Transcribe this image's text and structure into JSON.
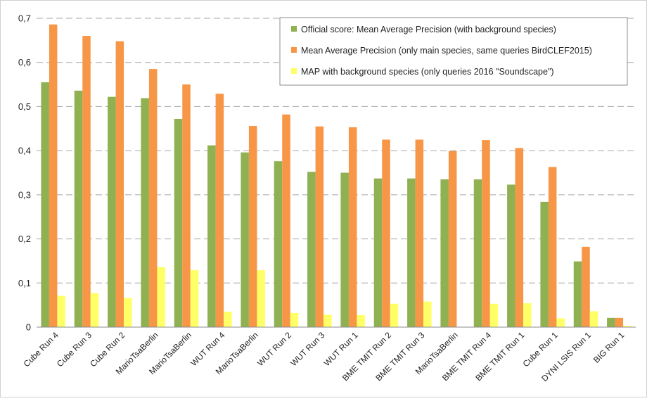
{
  "chart_data": {
    "type": "bar",
    "title": "",
    "xlabel": "",
    "ylabel": "",
    "ylim": [
      0,
      0.7
    ],
    "yticks": [
      "0",
      "0,1",
      "0,2",
      "0,3",
      "0,4",
      "0,5",
      "0,6",
      "0,7"
    ],
    "grid": "horizontal-dashed",
    "legend_position": "top-right",
    "categories": [
      "Cube Run 4",
      "Cube Run 3",
      "Cube Run 2",
      "MarioTsaBerlin",
      "MarioTsaBerlin",
      "WUT Run 4",
      "MarioTsaBerlin",
      "WUT Run 2",
      "WUT Run 3",
      "WUT Run 1",
      "BME TMIT Run 2",
      "BME TMIT Run 3",
      "MarioTsaBerlin",
      "BME TMIT Run 4",
      "BME TMIT Run 1",
      "Cube Run 1",
      "DYNI LSIS Run 1",
      "BIG Run 1"
    ],
    "series": [
      {
        "name": "Official score: Mean Average Precision (with background species)",
        "color": "#8fb151",
        "values": [
          0.555,
          0.536,
          0.522,
          0.519,
          0.472,
          0.412,
          0.396,
          0.376,
          0.352,
          0.35,
          0.337,
          0.337,
          0.335,
          0.335,
          0.323,
          0.284,
          0.149,
          0.021
        ]
      },
      {
        "name": "Mean Average Precision (only main species, same queries BirdCLEF2015)",
        "color": "#f79646",
        "values": [
          0.686,
          0.66,
          0.648,
          0.585,
          0.55,
          0.529,
          0.456,
          0.482,
          0.455,
          0.453,
          0.425,
          0.425,
          0.399,
          0.424,
          0.406,
          0.363,
          0.182,
          0.021
        ]
      },
      {
        "name": "MAP with background species (only queries 2016 \"Soundscape\")",
        "color": "#ffff66",
        "values": [
          0.071,
          0.077,
          0.066,
          0.136,
          0.129,
          0.035,
          0.129,
          0.032,
          0.028,
          0.027,
          0.053,
          0.058,
          0.0,
          0.053,
          0.054,
          0.02,
          0.036,
          0.003
        ]
      }
    ]
  }
}
